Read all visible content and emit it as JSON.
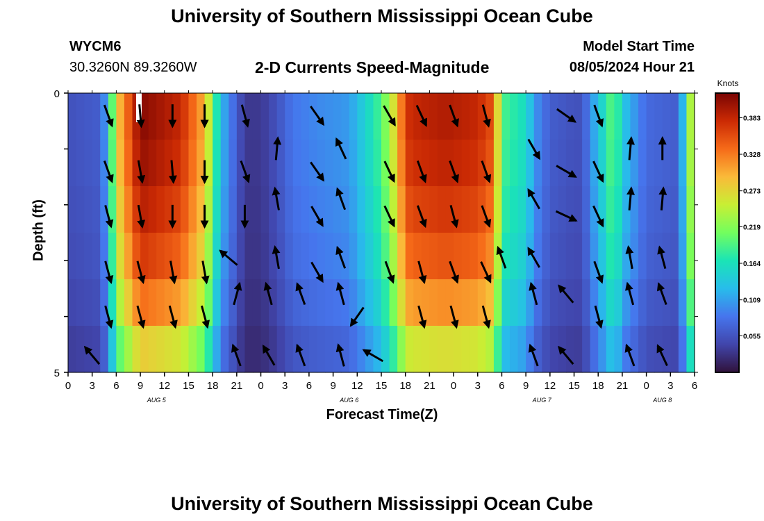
{
  "header": {
    "title": "University of Southern Mississippi Ocean Cube",
    "station_id": "WYCM6",
    "coordinates": "30.3260N  89.3260W",
    "subtitle": "2-D Currents Speed-Magnitude",
    "model_start_label": "Model Start Time",
    "model_start_value": "08/05/2024 Hour 21"
  },
  "footer": {
    "title": "University of Southern Mississippi Ocean Cube"
  },
  "chart_data": {
    "type": "heatmap",
    "title": "2-D Currents Speed-Magnitude",
    "xlabel": "Forecast Time(Z)",
    "ylabel": "Depth (ft)",
    "ylim": [
      0,
      5
    ],
    "y_tick_labels": [
      "0",
      "5"
    ],
    "x_tick_labels": [
      "0",
      "3",
      "6",
      "9",
      "12",
      "15",
      "18",
      "21",
      "0",
      "3",
      "6",
      "9",
      "12",
      "15",
      "18",
      "21",
      "0",
      "3",
      "6",
      "9",
      "12",
      "15",
      "18",
      "21",
      "0",
      "3",
      "6"
    ],
    "date_labels": [
      {
        "label": "AUG 5",
        "hour_index": 11
      },
      {
        "label": "AUG 6",
        "hour_index": 35
      },
      {
        "label": "AUG 7",
        "hour_index": 59
      },
      {
        "label": "AUG 8",
        "hour_index": 74
      }
    ],
    "colorbar": {
      "label": "Knots",
      "ticks": [
        "0.383",
        "0.328",
        "0.273",
        "0.219",
        "0.164",
        "0.109",
        "0.055"
      ],
      "range": [
        0,
        0.42
      ]
    },
    "speed_profile_hours": [
      0,
      4,
      5,
      6,
      9,
      14,
      17,
      19,
      22,
      24,
      26,
      28,
      31,
      35,
      39,
      41,
      42,
      43,
      47,
      51,
      53,
      54,
      57,
      58,
      60,
      63,
      64,
      65,
      67,
      68,
      69,
      72,
      76,
      78
    ],
    "speed_profile_knots": [
      0.05,
      0.06,
      0.12,
      0.26,
      0.39,
      0.36,
      0.28,
      0.12,
      0.03,
      0.03,
      0.05,
      0.08,
      0.09,
      0.1,
      0.18,
      0.27,
      0.35,
      0.36,
      0.37,
      0.36,
      0.33,
      0.18,
      0.15,
      0.1,
      0.06,
      0.05,
      0.05,
      0.09,
      0.16,
      0.2,
      0.13,
      0.07,
      0.06,
      0.28
    ],
    "depth_layer_scale": [
      1.06,
      1.04,
      1.0,
      0.95,
      0.86,
      0.72
    ],
    "arrows": [
      {
        "hour": 5,
        "depth": 0.4,
        "angle": 160,
        "length": 0.8
      },
      {
        "hour": 9,
        "depth": 0.4,
        "angle": 175,
        "length": 0.8
      },
      {
        "hour": 13,
        "depth": 0.4,
        "angle": 180,
        "length": 0.8
      },
      {
        "hour": 17,
        "depth": 0.4,
        "angle": 180,
        "length": 0.8
      },
      {
        "hour": 22,
        "depth": 0.4,
        "angle": 165,
        "length": 0.8
      },
      {
        "hour": 31,
        "depth": 0.4,
        "angle": 145,
        "length": 0.8
      },
      {
        "hour": 40,
        "depth": 0.4,
        "angle": 150,
        "length": 0.8
      },
      {
        "hour": 44,
        "depth": 0.4,
        "angle": 155,
        "length": 0.8
      },
      {
        "hour": 48,
        "depth": 0.4,
        "angle": 160,
        "length": 0.8
      },
      {
        "hour": 52,
        "depth": 0.4,
        "angle": 165,
        "length": 0.8
      },
      {
        "hour": 62,
        "depth": 0.4,
        "angle": 125,
        "length": 0.8
      },
      {
        "hour": 66,
        "depth": 0.4,
        "angle": 160,
        "length": 0.8
      },
      {
        "hour": 26,
        "depth": 1.0,
        "angle": 5,
        "length": 0.8
      },
      {
        "hour": 34,
        "depth": 1.0,
        "angle": 335,
        "length": 0.8
      },
      {
        "hour": 70,
        "depth": 1.0,
        "angle": 5,
        "length": 0.8
      },
      {
        "hour": 74,
        "depth": 1.0,
        "angle": 0,
        "length": 0.8
      },
      {
        "hour": 5,
        "depth": 1.4,
        "angle": 160,
        "length": 0.8
      },
      {
        "hour": 9,
        "depth": 1.4,
        "angle": 170,
        "length": 0.8
      },
      {
        "hour": 13,
        "depth": 1.4,
        "angle": 175,
        "length": 0.8
      },
      {
        "hour": 17,
        "depth": 1.4,
        "angle": 180,
        "length": 0.8
      },
      {
        "hour": 22,
        "depth": 1.4,
        "angle": 160,
        "length": 0.8
      },
      {
        "hour": 31,
        "depth": 1.4,
        "angle": 145,
        "length": 0.8
      },
      {
        "hour": 40,
        "depth": 1.4,
        "angle": 155,
        "length": 0.8
      },
      {
        "hour": 44,
        "depth": 1.4,
        "angle": 160,
        "length": 0.8
      },
      {
        "hour": 48,
        "depth": 1.4,
        "angle": 160,
        "length": 0.8
      },
      {
        "hour": 52,
        "depth": 1.4,
        "angle": 160,
        "length": 0.8
      },
      {
        "hour": 58,
        "depth": 1.0,
        "angle": 150,
        "length": 0.8
      },
      {
        "hour": 62,
        "depth": 1.4,
        "angle": 120,
        "length": 0.8
      },
      {
        "hour": 66,
        "depth": 1.4,
        "angle": 155,
        "length": 0.8
      },
      {
        "hour": 26,
        "depth": 1.9,
        "angle": 350,
        "length": 0.8
      },
      {
        "hour": 34,
        "depth": 1.9,
        "angle": 340,
        "length": 0.8
      },
      {
        "hour": 58,
        "depth": 1.9,
        "angle": 330,
        "length": 0.8
      },
      {
        "hour": 70,
        "depth": 1.9,
        "angle": 5,
        "length": 0.8
      },
      {
        "hour": 74,
        "depth": 1.9,
        "angle": 5,
        "length": 0.8
      },
      {
        "hour": 5,
        "depth": 2.2,
        "angle": 165,
        "length": 0.8
      },
      {
        "hour": 9,
        "depth": 2.2,
        "angle": 170,
        "length": 0.8
      },
      {
        "hour": 13,
        "depth": 2.2,
        "angle": 180,
        "length": 0.8
      },
      {
        "hour": 17,
        "depth": 2.2,
        "angle": 180,
        "length": 0.8
      },
      {
        "hour": 22,
        "depth": 2.2,
        "angle": 180,
        "length": 0.8
      },
      {
        "hour": 31,
        "depth": 2.2,
        "angle": 150,
        "length": 0.8
      },
      {
        "hour": 40,
        "depth": 2.2,
        "angle": 155,
        "length": 0.8
      },
      {
        "hour": 44,
        "depth": 2.2,
        "angle": 160,
        "length": 0.8
      },
      {
        "hour": 48,
        "depth": 2.2,
        "angle": 165,
        "length": 0.8
      },
      {
        "hour": 52,
        "depth": 2.2,
        "angle": 160,
        "length": 0.8
      },
      {
        "hour": 62,
        "depth": 2.2,
        "angle": 115,
        "length": 0.8
      },
      {
        "hour": 66,
        "depth": 2.2,
        "angle": 155,
        "length": 0.8
      },
      {
        "hour": 20,
        "depth": 2.95,
        "angle": 310,
        "length": 0.8
      },
      {
        "hour": 26,
        "depth": 2.95,
        "angle": 350,
        "length": 0.8
      },
      {
        "hour": 34,
        "depth": 2.95,
        "angle": 340,
        "length": 0.8
      },
      {
        "hour": 54,
        "depth": 2.95,
        "angle": 340,
        "length": 0.8
      },
      {
        "hour": 58,
        "depth": 2.95,
        "angle": 330,
        "length": 0.8
      },
      {
        "hour": 70,
        "depth": 2.95,
        "angle": 350,
        "length": 0.8
      },
      {
        "hour": 74,
        "depth": 2.95,
        "angle": 345,
        "length": 0.8
      },
      {
        "hour": 5,
        "depth": 3.2,
        "angle": 165,
        "length": 0.8
      },
      {
        "hour": 9,
        "depth": 3.2,
        "angle": 165,
        "length": 0.8
      },
      {
        "hour": 13,
        "depth": 3.2,
        "angle": 170,
        "length": 0.8
      },
      {
        "hour": 17,
        "depth": 3.2,
        "angle": 170,
        "length": 0.8
      },
      {
        "hour": 31,
        "depth": 3.2,
        "angle": 150,
        "length": 0.8
      },
      {
        "hour": 40,
        "depth": 3.2,
        "angle": 160,
        "length": 0.8
      },
      {
        "hour": 44,
        "depth": 3.2,
        "angle": 165,
        "length": 0.8
      },
      {
        "hour": 48,
        "depth": 3.2,
        "angle": 160,
        "length": 0.8
      },
      {
        "hour": 52,
        "depth": 3.2,
        "angle": 155,
        "length": 0.8
      },
      {
        "hour": 66,
        "depth": 3.2,
        "angle": 160,
        "length": 0.8
      },
      {
        "hour": 21,
        "depth": 3.6,
        "angle": 15,
        "length": 0.8
      },
      {
        "hour": 25,
        "depth": 3.6,
        "angle": 345,
        "length": 0.8
      },
      {
        "hour": 29,
        "depth": 3.6,
        "angle": 340,
        "length": 0.8
      },
      {
        "hour": 34,
        "depth": 3.6,
        "angle": 345,
        "length": 0.8
      },
      {
        "hour": 58,
        "depth": 3.6,
        "angle": 345,
        "length": 0.8
      },
      {
        "hour": 62,
        "depth": 3.6,
        "angle": 320,
        "length": 0.8
      },
      {
        "hour": 70,
        "depth": 3.6,
        "angle": 345,
        "length": 0.8
      },
      {
        "hour": 74,
        "depth": 3.6,
        "angle": 340,
        "length": 0.8
      },
      {
        "hour": 5,
        "depth": 4.0,
        "angle": 165,
        "length": 0.8
      },
      {
        "hour": 9,
        "depth": 4.0,
        "angle": 165,
        "length": 0.8
      },
      {
        "hour": 13,
        "depth": 4.0,
        "angle": 165,
        "length": 0.8
      },
      {
        "hour": 17,
        "depth": 4.0,
        "angle": 165,
        "length": 0.8
      },
      {
        "hour": 36,
        "depth": 4.0,
        "angle": 215,
        "length": 0.8
      },
      {
        "hour": 44,
        "depth": 4.0,
        "angle": 165,
        "length": 0.8
      },
      {
        "hour": 48,
        "depth": 4.0,
        "angle": 165,
        "length": 0.8
      },
      {
        "hour": 52,
        "depth": 4.0,
        "angle": 165,
        "length": 0.8
      },
      {
        "hour": 66,
        "depth": 4.0,
        "angle": 165,
        "length": 0.8
      },
      {
        "hour": 3,
        "depth": 4.7,
        "angle": 320,
        "length": 0.8
      },
      {
        "hour": 21,
        "depth": 4.7,
        "angle": 340,
        "length": 0.8
      },
      {
        "hour": 25,
        "depth": 4.7,
        "angle": 330,
        "length": 0.8
      },
      {
        "hour": 29,
        "depth": 4.7,
        "angle": 340,
        "length": 0.8
      },
      {
        "hour": 34,
        "depth": 4.7,
        "angle": 345,
        "length": 0.8
      },
      {
        "hour": 38,
        "depth": 4.7,
        "angle": 300,
        "length": 0.8
      },
      {
        "hour": 58,
        "depth": 4.7,
        "angle": 340,
        "length": 0.8
      },
      {
        "hour": 62,
        "depth": 4.7,
        "angle": 320,
        "length": 0.8
      },
      {
        "hour": 70,
        "depth": 4.7,
        "angle": 340,
        "length": 0.8
      },
      {
        "hour": 74,
        "depth": 4.7,
        "angle": 335,
        "length": 0.8
      }
    ]
  }
}
